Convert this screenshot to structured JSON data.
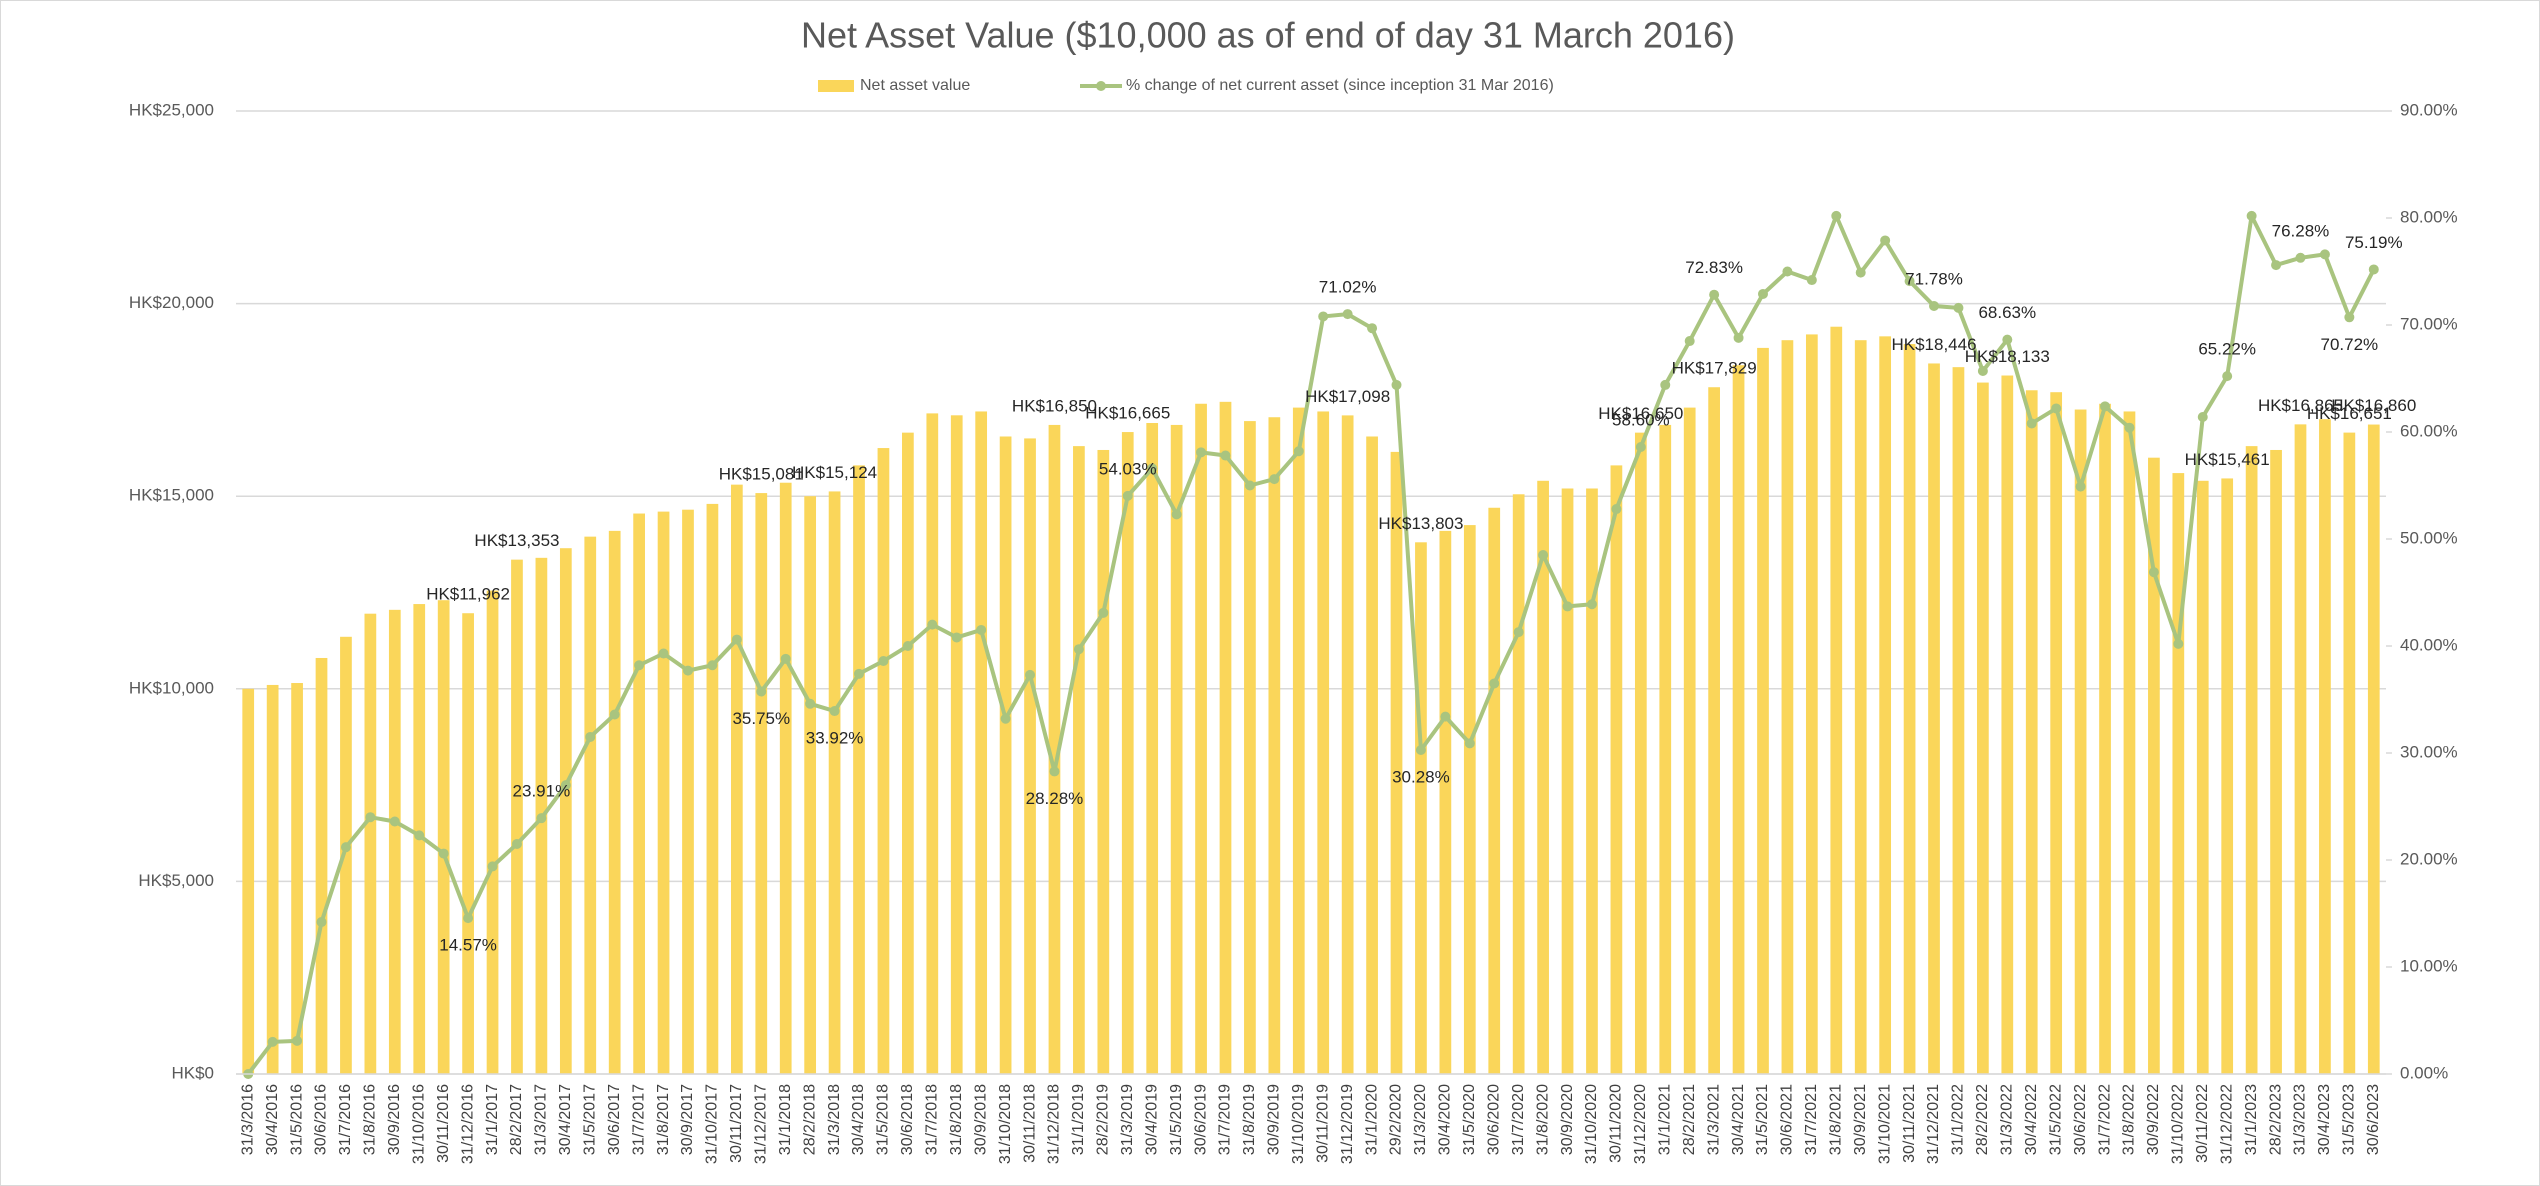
{
  "chart_data": {
    "type": "bar_line",
    "title": "Net Asset Value ($10,000 as of end of day 31 March 2016)",
    "categories": [
      "31/3/2016",
      "30/4/2016",
      "31/5/2016",
      "30/6/2016",
      "31/7/2016",
      "31/8/2016",
      "30/9/2016",
      "31/10/2016",
      "30/11/2016",
      "31/12/2016",
      "31/1/2017",
      "28/2/2017",
      "31/3/2017",
      "30/4/2017",
      "31/5/2017",
      "30/6/2017",
      "31/7/2017",
      "31/8/2017",
      "30/9/2017",
      "31/10/2017",
      "30/11/2017",
      "31/12/2017",
      "31/1/2018",
      "28/2/2018",
      "31/3/2018",
      "30/4/2018",
      "31/5/2018",
      "30/6/2018",
      "31/7/2018",
      "31/8/2018",
      "30/9/2018",
      "31/10/2018",
      "30/11/2018",
      "31/12/2018",
      "31/1/2019",
      "28/2/2019",
      "31/3/2019",
      "30/4/2019",
      "31/5/2019",
      "30/6/2019",
      "31/7/2019",
      "31/8/2019",
      "30/9/2019",
      "31/10/2019",
      "30/11/2019",
      "31/12/2019",
      "31/1/2020",
      "29/2/2020",
      "31/3/2020",
      "30/4/2020",
      "31/5/2020",
      "30/6/2020",
      "31/7/2020",
      "31/8/2020",
      "30/9/2020",
      "31/10/2020",
      "30/11/2020",
      "31/12/2020",
      "31/1/2021",
      "28/2/2021",
      "31/3/2021",
      "30/4/2021",
      "31/5/2021",
      "30/6/2021",
      "31/7/2021",
      "31/8/2021",
      "30/9/2021",
      "31/10/2021",
      "30/11/2021",
      "31/12/2021",
      "31/1/2022",
      "28/2/2022",
      "31/3/2022",
      "30/4/2022",
      "31/5/2022",
      "30/6/2022",
      "31/7/2022",
      "31/8/2022",
      "30/9/2022",
      "31/10/2022",
      "30/11/2022",
      "31/12/2022",
      "31/1/2023",
      "28/2/2023",
      "31/3/2023",
      "30/4/2023",
      "31/5/2023",
      "30/6/2023"
    ],
    "series": [
      {
        "name": "Net asset value",
        "type": "bar",
        "color": "#fad65a",
        "values": [
          10000,
          10100,
          10150,
          10800,
          11350,
          11950,
          12050,
          12200,
          12300,
          11962,
          12550,
          13353,
          13400,
          13650,
          13950,
          14100,
          14550,
          14600,
          14650,
          14800,
          15300,
          15081,
          15350,
          15000,
          15124,
          15800,
          16250,
          16650,
          17150,
          17100,
          17200,
          16550,
          16500,
          16850,
          16300,
          16200,
          16665,
          16900,
          16850,
          17400,
          17450,
          16950,
          17050,
          17300,
          17200,
          17098,
          16550,
          16150,
          13803,
          14100,
          14250,
          14700,
          15050,
          15400,
          15200,
          15200,
          15800,
          16650,
          16850,
          17300,
          17829,
          18400,
          18850,
          19050,
          19200,
          19400,
          19050,
          19150,
          18950,
          18446,
          18350,
          17950,
          18133,
          17750,
          17700,
          17250,
          17400,
          17200,
          16000,
          15600,
          15400,
          15461,
          16300,
          16200,
          16865,
          17000,
          16651,
          16860
        ],
        "value_labels": [
          null,
          null,
          null,
          null,
          null,
          null,
          null,
          null,
          null,
          "HK$11,962",
          null,
          "HK$13,353",
          null,
          null,
          null,
          null,
          null,
          null,
          null,
          null,
          null,
          "HK$15,081",
          null,
          null,
          "HK$15,124",
          null,
          null,
          null,
          null,
          null,
          null,
          null,
          null,
          "HK$16,850",
          null,
          null,
          "HK$16,665",
          null,
          null,
          null,
          null,
          null,
          null,
          null,
          null,
          "HK$17,098",
          null,
          null,
          "HK$13,803",
          null,
          null,
          null,
          null,
          null,
          null,
          null,
          null,
          "HK$16,650",
          null,
          null,
          "HK$17,829",
          null,
          null,
          null,
          null,
          null,
          null,
          null,
          null,
          "HK$18,446",
          null,
          null,
          "HK$18,133",
          null,
          null,
          null,
          null,
          null,
          null,
          null,
          null,
          "HK$15,461",
          null,
          null,
          "HK$16,865",
          null,
          "HK$16,651",
          "HK$16,860"
        ]
      },
      {
        "name": "% change of net current asset (since inception 31 Mar 2016)",
        "type": "line",
        "axis": "y2",
        "color": "#a9c47f",
        "values": [
          0,
          3.0,
          3.1,
          14.2,
          21.2,
          24.0,
          23.6,
          22.3,
          20.6,
          14.57,
          19.4,
          21.5,
          23.91,
          27.0,
          31.5,
          33.6,
          38.2,
          39.3,
          37.7,
          38.2,
          40.6,
          35.75,
          38.8,
          34.6,
          33.92,
          37.4,
          38.6,
          40.0,
          42.0,
          40.8,
          41.5,
          33.2,
          37.3,
          28.28,
          39.7,
          43.1,
          54.03,
          56.6,
          52.3,
          58.1,
          57.8,
          55.0,
          55.6,
          58.2,
          70.8,
          71.02,
          69.7,
          64.4,
          30.28,
          33.4,
          30.9,
          36.5,
          41.3,
          48.5,
          43.7,
          43.9,
          52.8,
          58.6,
          64.4,
          68.5,
          72.83,
          68.8,
          72.9,
          75.0,
          74.2,
          80.2,
          74.9,
          77.9,
          74.1,
          71.78,
          71.6,
          65.7,
          68.63,
          60.8,
          62.2,
          54.9,
          62.4,
          60.4,
          46.9,
          40.2,
          61.4,
          65.22,
          80.2,
          75.6,
          76.28,
          76.6,
          70.72,
          75.19
        ],
        "value_labels": [
          null,
          null,
          null,
          null,
          null,
          null,
          null,
          null,
          null,
          "14.57%",
          null,
          null,
          "23.91%",
          null,
          null,
          null,
          null,
          null,
          null,
          null,
          null,
          "35.75%",
          null,
          null,
          "33.92%",
          null,
          null,
          null,
          null,
          null,
          null,
          null,
          null,
          "28.28%",
          null,
          null,
          "54.03%",
          null,
          null,
          null,
          null,
          null,
          null,
          null,
          null,
          "71.02%",
          null,
          null,
          "30.28%",
          null,
          null,
          null,
          null,
          null,
          null,
          null,
          null,
          "58.60%",
          null,
          null,
          "72.83%",
          null,
          null,
          null,
          null,
          null,
          null,
          null,
          null,
          "71.78%",
          null,
          null,
          "68.63%",
          null,
          null,
          null,
          null,
          null,
          null,
          null,
          null,
          "65.22%",
          null,
          null,
          "76.28%",
          null,
          "70.72%",
          "75.19%"
        ]
      }
    ],
    "ylim": [
      0,
      25000
    ],
    "yticks": [
      {
        "value": 0,
        "label": "HK$0"
      },
      {
        "value": 5000,
        "label": "HK$5,000"
      },
      {
        "value": 10000,
        "label": "HK$10,000"
      },
      {
        "value": 15000,
        "label": "HK$15,000"
      },
      {
        "value": 20000,
        "label": "HK$20,000"
      },
      {
        "value": 25000,
        "label": "HK$25,000"
      }
    ],
    "y2lim": [
      0,
      90
    ],
    "y2ticks": [
      {
        "value": 0,
        "label": "0.00%"
      },
      {
        "value": 10,
        "label": "10.00%"
      },
      {
        "value": 20,
        "label": "20.00%"
      },
      {
        "value": 30,
        "label": "30.00%"
      },
      {
        "value": 40,
        "label": "40.00%"
      },
      {
        "value": 50,
        "label": "50.00%"
      },
      {
        "value": 60,
        "label": "60.00%"
      },
      {
        "value": 70,
        "label": "70.00%"
      },
      {
        "value": 80,
        "label": "80.00%"
      },
      {
        "value": 90,
        "label": "90.00%"
      }
    ],
    "grid": true,
    "legend": "top"
  }
}
